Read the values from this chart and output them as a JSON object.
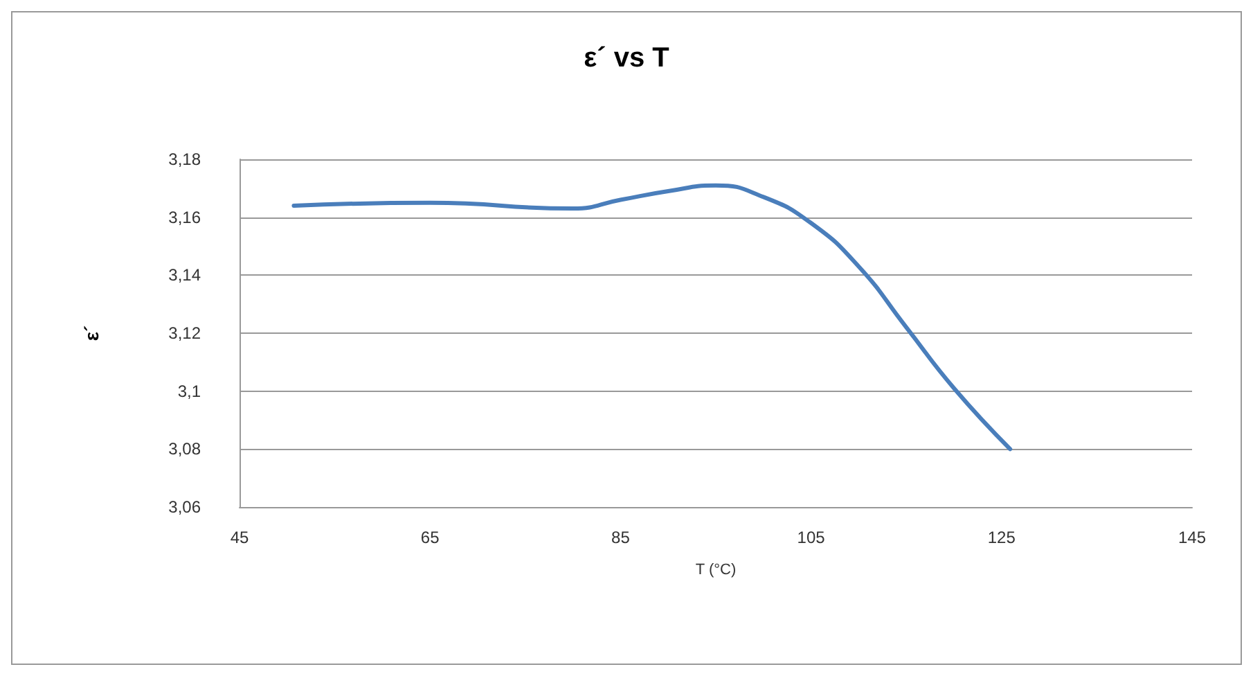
{
  "chart_data": {
    "type": "line",
    "title": "ε´ vs T",
    "xlabel": "T (°C)",
    "ylabel": "ε´",
    "x": [
      50.7,
      65,
      80,
      85,
      90,
      95,
      100,
      105,
      110,
      115,
      120,
      125.9
    ],
    "series": [
      {
        "color": "#4a7ebb",
        "values": [
          3.164,
          3.165,
          3.163,
          3.166,
          3.169,
          3.171,
          3.167,
          3.158,
          3.143,
          3.122,
          3.101,
          3.08
        ]
      }
    ],
    "xlim": [
      45,
      145
    ],
    "xticks": [
      45,
      65,
      85,
      105,
      125,
      145
    ],
    "ylim": [
      3.06,
      3.18
    ],
    "yticks": [
      {
        "value": 3.06,
        "label": "3,06"
      },
      {
        "value": 3.08,
        "label": "3,08"
      },
      {
        "value": 3.1,
        "label": "3,1"
      },
      {
        "value": 3.12,
        "label": "3,12"
      },
      {
        "value": 3.14,
        "label": "3,14"
      },
      {
        "value": 3.16,
        "label": "3,16"
      },
      {
        "value": 3.18,
        "label": "3,18"
      }
    ],
    "grid": "y",
    "marker": "none",
    "line_style": "solid"
  }
}
